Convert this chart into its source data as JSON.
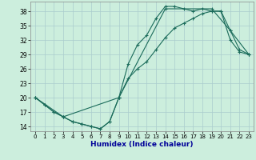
{
  "xlabel": "Humidex (Indice chaleur)",
  "bg_color": "#cceedd",
  "grid_color": "#aacccc",
  "line_color": "#1a6b5a",
  "xlim": [
    -0.5,
    23.5
  ],
  "ylim": [
    13.0,
    40.0
  ],
  "yticks": [
    14,
    17,
    20,
    23,
    26,
    29,
    32,
    35,
    38
  ],
  "xticks": [
    0,
    1,
    2,
    3,
    4,
    5,
    6,
    7,
    8,
    9,
    10,
    11,
    12,
    13,
    14,
    15,
    16,
    17,
    18,
    19,
    20,
    21,
    22,
    23
  ],
  "line1_x": [
    0,
    1,
    2,
    3,
    4,
    5,
    6,
    7,
    8,
    9,
    10,
    11,
    12,
    13,
    14,
    15,
    16,
    17,
    18,
    19,
    20,
    21,
    22,
    23
  ],
  "line1_y": [
    20,
    18.5,
    17,
    16,
    15,
    14.5,
    14,
    13.5,
    15,
    20,
    27,
    31,
    33,
    36.5,
    39,
    39,
    38.5,
    38,
    38.5,
    38,
    38,
    32,
    29.5,
    29
  ],
  "line2_x": [
    0,
    1,
    2,
    3,
    4,
    5,
    6,
    7,
    8,
    9,
    10,
    11,
    12,
    13,
    14,
    15,
    16,
    17,
    18,
    19,
    20,
    21,
    22,
    23
  ],
  "line2_y": [
    20,
    18.5,
    17,
    16,
    15,
    14.5,
    14,
    13.5,
    15,
    20,
    24,
    26,
    27.5,
    30,
    32.5,
    34.5,
    35.5,
    36.5,
    37.5,
    38,
    38,
    34,
    30,
    29
  ],
  "line3_x": [
    0,
    3,
    9,
    14,
    19,
    21,
    23
  ],
  "line3_y": [
    20,
    16,
    20,
    38.5,
    38.5,
    34,
    29
  ]
}
